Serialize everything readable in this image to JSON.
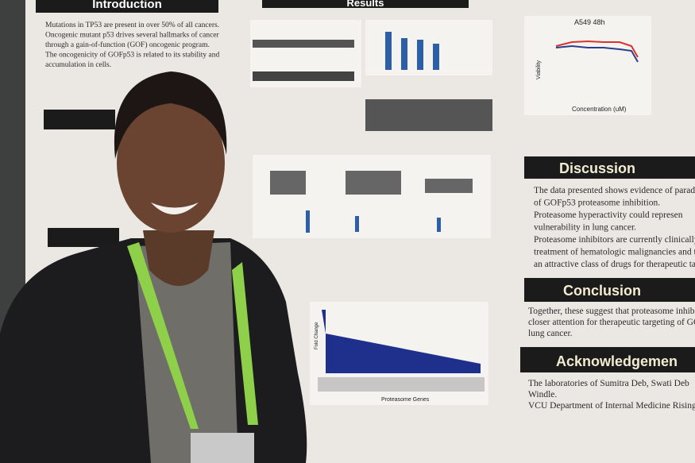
{
  "poster": {
    "introduction": {
      "heading": "Introduction",
      "lines": [
        "Mutations in TP53 are present in over 50% of all cancers.",
        "Oncogenic mutant p53 drives several hallmarks of cancer",
        "through a gain-of-function (GOF) oncogenic program.",
        "The oncogenicity of GOFp53 is related to its stability and",
        "accumulation in cells."
      ]
    },
    "results": {
      "heading": "Results"
    },
    "figures": {
      "viability_title": "A549 48h",
      "viability_axis": "Viability",
      "concentration_axis": "Concentration (uM)",
      "genes_axis": "Proteasome Genes",
      "fold_axis": "Fold Change"
    },
    "discussion": {
      "heading": "Discussion",
      "lines": [
        "The data presented shows evidence of parad",
        "of GOFp53 proteasome inhibition.",
        "Proteasome hyperactivity could represen",
        "vulnerability in lung cancer.",
        "Proteasome inhibitors are currently clinically",
        "treatment of hematologic malignancies and th",
        "an attractive class of drugs for therapeutic target"
      ]
    },
    "conclusion": {
      "heading": "Conclusion",
      "lines": [
        "Together, these suggest that proteasome inhib",
        "closer attention for therapeutic targeting of GOF",
        "lung cancer."
      ]
    },
    "acknowledgements": {
      "heading": "Acknowledgemen",
      "lines": [
        "The laboratories of Sumitra Deb, Swati Deb",
        "Windle.",
        "VCU Department of Internal Medicine Rising Sch"
      ]
    }
  }
}
